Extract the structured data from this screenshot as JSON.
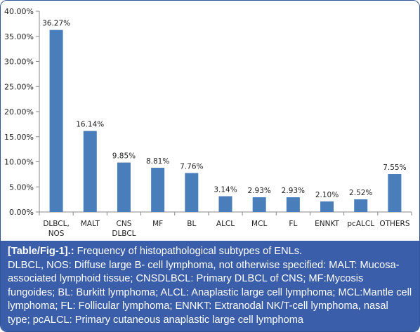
{
  "chart_data": {
    "type": "bar",
    "categories": [
      [
        "DLBCL,",
        "NOS"
      ],
      [
        "MALT"
      ],
      [
        "CNS",
        "DLBCL"
      ],
      [
        "MF"
      ],
      [
        "BL"
      ],
      [
        "ALCL"
      ],
      [
        "MCL"
      ],
      [
        "FL"
      ],
      [
        "ENNKT"
      ],
      [
        "pcALCL"
      ],
      [
        "OTHERS"
      ]
    ],
    "values": [
      36.27,
      16.14,
      9.85,
      8.81,
      7.76,
      3.14,
      2.93,
      2.93,
      2.1,
      2.52,
      7.55
    ],
    "data_labels": [
      "36.27%",
      "16.14%",
      "9.85%",
      "8.81%",
      "7.76%",
      "3.14%",
      "2.93%",
      "2.93%",
      "2.10%",
      "2.52%",
      "7.55%"
    ],
    "ylim": [
      0,
      40
    ],
    "yticks": [
      0,
      5,
      10,
      15,
      20,
      25,
      30,
      35,
      40
    ],
    "ytick_labels": [
      "0.00%",
      "5.00%",
      "10.00%",
      "15.00%",
      "20.00%",
      "25.00%",
      "30.00%",
      "35.00%",
      "40.00%"
    ],
    "grid": false,
    "legend": "none",
    "bar_color": "#4a7ebb"
  },
  "caption": {
    "label": "[Table/Fig-1].:",
    "title": " Frequency of histopathological subtypes of ENLs.",
    "body": "DLBCL, NOS: Diffuse large B- cell lymphoma, not otherwise specified: MALT: Mucosa-associated lymphoid tissue; CNSDLBCL: Primary DLBCL of CNS; MF:Mycosis fungoides; BL: Burkitt lymphoma; ALCL: Anaplastic large cell lymphoma; MCL:Mantle cell lymphoma; FL: Follicular lymphoma; ENNKT: Extranodal NK/T-cell lymphoma, nasal type; pcALCL: Primary cutaneous anaplastic large cell lymphoma"
  }
}
